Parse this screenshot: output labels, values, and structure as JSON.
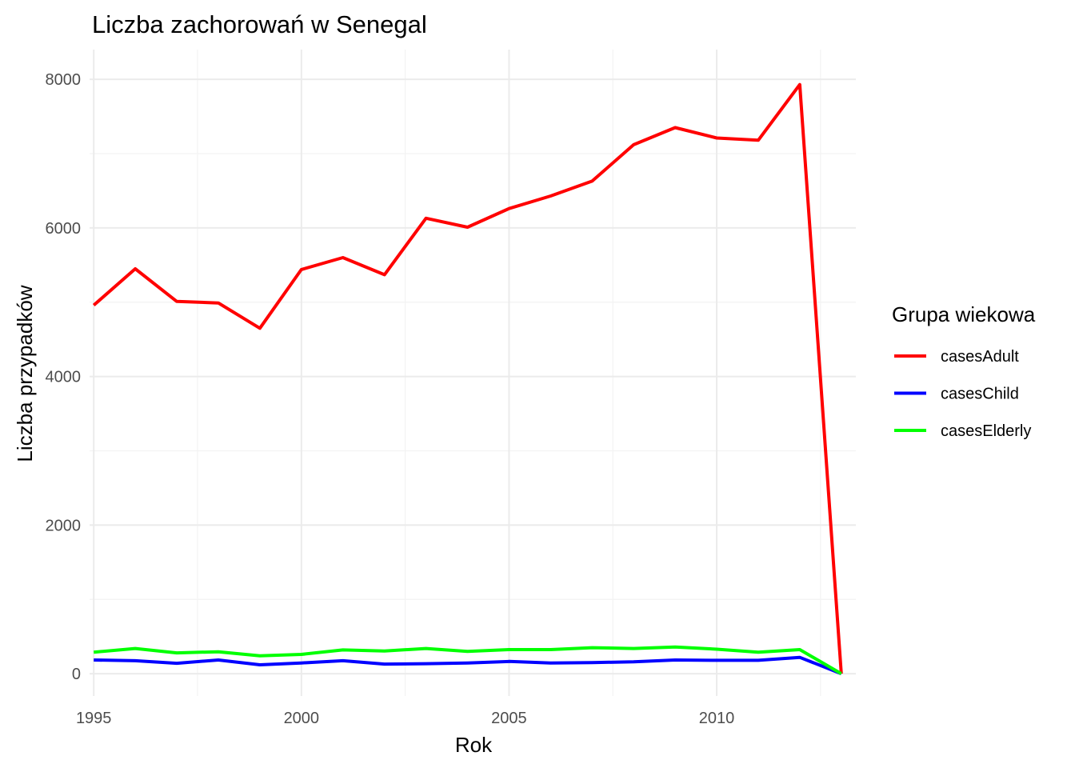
{
  "chart_data": {
    "type": "line",
    "title": "Liczba zachorowań w Senegal",
    "xlabel": "Rok",
    "ylabel": "Liczba przypadków",
    "x": [
      1995,
      1996,
      1997,
      1998,
      1999,
      2000,
      2001,
      2002,
      2003,
      2004,
      2005,
      2006,
      2007,
      2008,
      2009,
      2010,
      2011,
      2012,
      2013
    ],
    "series": [
      {
        "name": "casesAdult",
        "color": "#ff0000",
        "values": [
          4960,
          5450,
          5010,
          4990,
          4650,
          5440,
          5600,
          5370,
          6130,
          6010,
          6260,
          6430,
          6630,
          7120,
          7350,
          7210,
          7180,
          7930,
          0
        ]
      },
      {
        "name": "casesChild",
        "color": "#0000ff",
        "values": [
          185,
          175,
          140,
          185,
          120,
          145,
          175,
          130,
          135,
          145,
          165,
          145,
          150,
          160,
          185,
          180,
          180,
          220,
          0
        ]
      },
      {
        "name": "casesElderly",
        "color": "#00ff00",
        "values": [
          290,
          340,
          280,
          295,
          240,
          260,
          320,
          305,
          340,
          300,
          325,
          325,
          350,
          340,
          360,
          330,
          290,
          325,
          0
        ]
      }
    ],
    "xlim": [
      1994.9,
      2013.35
    ],
    "ylim": [
      -300,
      8400
    ],
    "x_ticks": [
      1995,
      2000,
      2005,
      2010
    ],
    "x_tick_labels": [
      "1995",
      "2000",
      "2005",
      "2010"
    ],
    "y_ticks": [
      0,
      2000,
      4000,
      6000,
      8000
    ],
    "y_tick_labels": [
      "0",
      "2000",
      "4000",
      "6000",
      "8000"
    ],
    "grid": true,
    "legend_title": "Grupa wiekowa",
    "legend_position": "right"
  }
}
